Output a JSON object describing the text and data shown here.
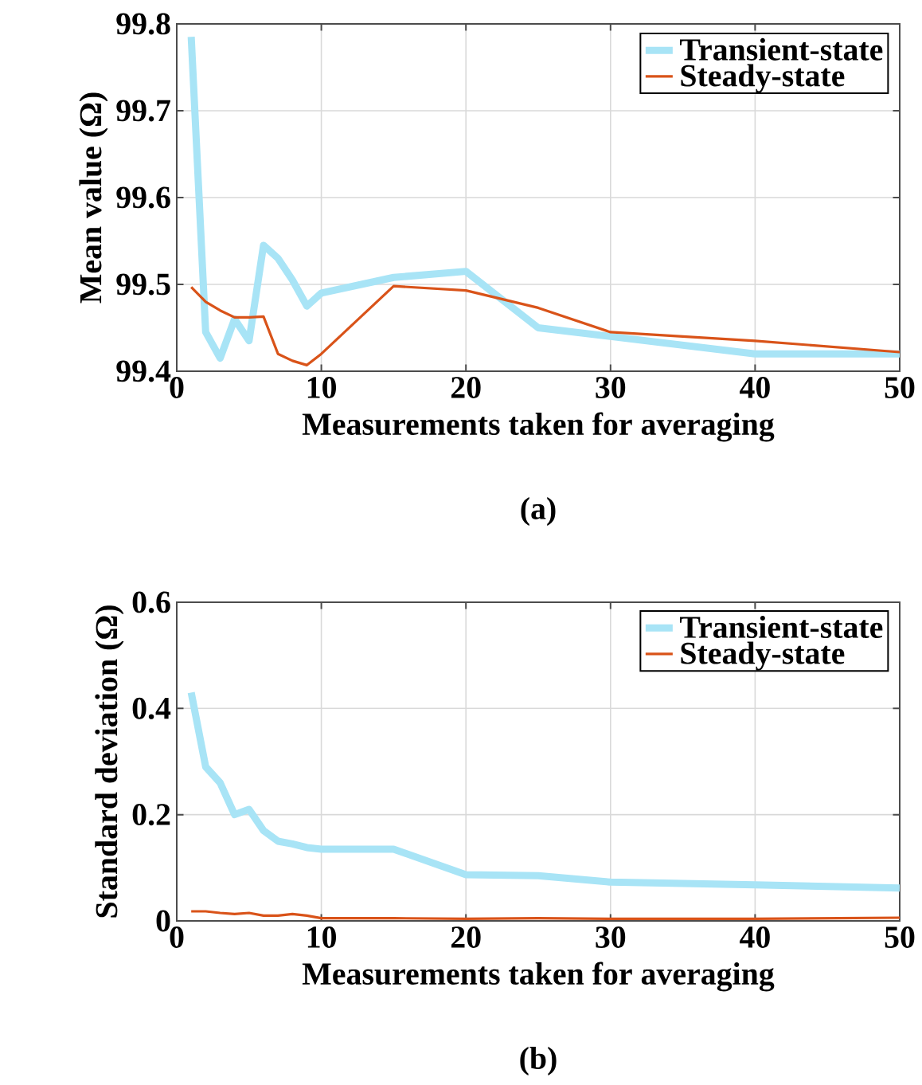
{
  "chart_data": [
    {
      "type": "line",
      "xlabel": "Measurements taken for averaging",
      "ylabel": "Mean value (Ω)",
      "annotations": [
        "(a)"
      ],
      "x": [
        1,
        2,
        3,
        4,
        5,
        6,
        7,
        8,
        9,
        10,
        15,
        20,
        25,
        30,
        40,
        50
      ],
      "series": [
        {
          "name": "Transient-state",
          "color": "#a8e4f6",
          "values": [
            99.785,
            99.445,
            99.415,
            99.46,
            99.435,
            99.545,
            99.53,
            99.505,
            99.475,
            99.49,
            99.508,
            99.515,
            99.45,
            99.44,
            99.42,
            99.42
          ]
        },
        {
          "name": "Steady-state",
          "color": "#d95319",
          "values": [
            99.497,
            99.48,
            99.47,
            99.462,
            99.462,
            99.463,
            99.42,
            99.412,
            99.407,
            99.42,
            99.498,
            99.493,
            99.473,
            99.445,
            99.435,
            99.422
          ]
        }
      ],
      "xlim": [
        0,
        50
      ],
      "xticks": [
        0,
        10,
        20,
        30,
        40,
        50
      ],
      "ylim": [
        99.4,
        99.8
      ],
      "yticks": [
        99.4,
        99.5,
        99.6,
        99.7,
        99.8
      ],
      "grid": true,
      "legend": "top right",
      "line_style": "solid",
      "marker": "none"
    },
    {
      "type": "line",
      "xlabel": "Measurements taken for averaging",
      "ylabel": "Standard deviation (Ω)",
      "annotations": [
        "(b)"
      ],
      "x": [
        1,
        2,
        3,
        4,
        5,
        6,
        7,
        8,
        9,
        10,
        15,
        20,
        25,
        30,
        40,
        50
      ],
      "series": [
        {
          "name": "Transient-state",
          "color": "#a8e4f6",
          "values": [
            0.43,
            0.29,
            0.26,
            0.2,
            0.21,
            0.17,
            0.15,
            0.145,
            0.138,
            0.135,
            0.135,
            0.087,
            0.085,
            0.073,
            0.068,
            0.062
          ]
        },
        {
          "name": "Steady-state",
          "color": "#d95319",
          "values": [
            0.018,
            0.018,
            0.015,
            0.013,
            0.015,
            0.01,
            0.01,
            0.013,
            0.01,
            0.005,
            0.005,
            0.004,
            0.005,
            0.004,
            0.004,
            0.006
          ]
        }
      ],
      "xlim": [
        0,
        50
      ],
      "xticks": [
        0,
        10,
        20,
        30,
        40,
        50
      ],
      "ylim": [
        0,
        0.6
      ],
      "yticks": [
        0,
        0.2,
        0.4,
        0.6
      ],
      "grid": true,
      "legend": "top right",
      "line_style": "solid",
      "marker": "none"
    }
  ]
}
